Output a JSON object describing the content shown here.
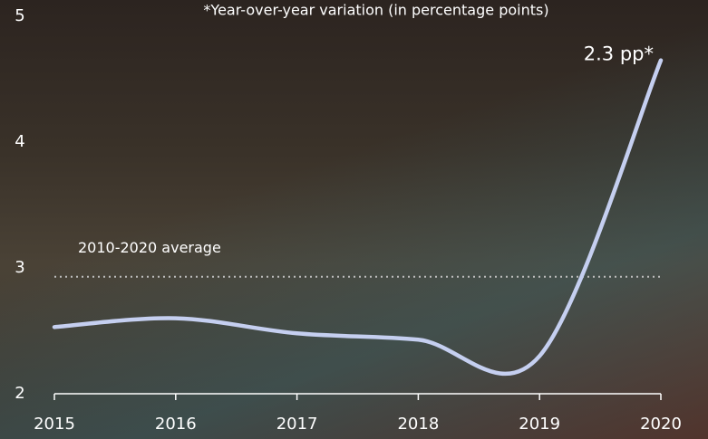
{
  "chart_data": {
    "type": "line",
    "title": "*Year-over-year variation (in percentage points)",
    "x": [
      2015,
      2016,
      2017,
      2018,
      2019,
      2020
    ],
    "values": [
      2.53,
      2.6,
      2.48,
      2.43,
      2.3,
      4.65
    ],
    "color": "#c5cff0",
    "xlim": [
      2015,
      2020
    ],
    "xticks": [
      2015,
      2016,
      2017,
      2018,
      2019,
      2020
    ],
    "ylim": [
      2,
      5
    ],
    "yticks": [
      2,
      3,
      4,
      5
    ],
    "average": {
      "label": "2010-2020 average",
      "value": 2.93
    },
    "annotation": "2.3 pp*"
  }
}
